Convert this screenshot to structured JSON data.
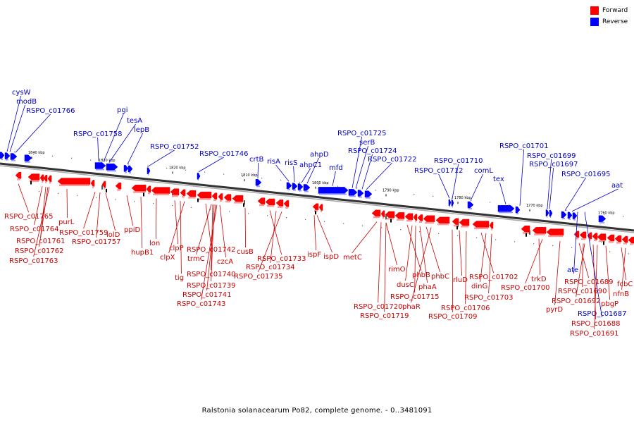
{
  "caption": "Ralstonia solanacearum Po82, complete genome. - 0..3481091",
  "legend": [
    {
      "label": "Forward",
      "color": "#ff0000"
    },
    {
      "label": "Reverse",
      "color": "#0000ff"
    }
  ],
  "colors": {
    "forward": "#ff0000",
    "reverse": "#0000ff",
    "label_forward": "#cc0000",
    "label_reverse": "#0000cc",
    "axis": "#555555"
  },
  "ticks": [
    "1840 kbp",
    "1830 kbp",
    "1820 kbp",
    "1810 kbp",
    "1800 kbp",
    "1790 kbp",
    "1780 kbp",
    "1770 kbp",
    "1760 kbp"
  ],
  "reverse_labels": [
    "cysW",
    "modB",
    "RSPO_c01766",
    "pgi",
    "RSPO_c01758",
    "tesA",
    "lepB",
    "RSPO_c01752",
    "RSPO_c01746",
    "crtB",
    "risA",
    "risS",
    "ahpC1",
    "ahpD",
    "mfd",
    "RSPO_c01725",
    "serB",
    "RSPO_c01724",
    "RSPO_c01722",
    "RSPO_c01712",
    "RSPO_c01710",
    "comL",
    "tex",
    "RSPO_c01701",
    "RSPO_c01699",
    "RSPO_c01697",
    "RSPO_c01695",
    "aat",
    "ate",
    "RSPO_c01687"
  ],
  "forward_labels": [
    "RSPO_c01765",
    "purL",
    "RSPO_c01764",
    "RSPO_c01761",
    "RSPO_c01762",
    "RSPO_c01763",
    "RSPO_c01759",
    "lolD",
    "RSPO_c01757",
    "ppiD",
    "hupB1",
    "lon",
    "clpP",
    "clpX",
    "tig",
    "RSPO_c01742",
    "trmC",
    "czcA",
    "RSPO_c01740",
    "RSPO_c01739",
    "RSPO_c01741",
    "RSPO_c01743",
    "cusB",
    "RSPO_c01733",
    "RSPO_c01734",
    "RSPO_c01735",
    "ispF",
    "ispD",
    "metC",
    "rimO",
    "phbB",
    "dusC",
    "phbC",
    "phaA",
    "RSPO_c01715",
    "phaR",
    "RSPO_c01720",
    "RSPO_c01719",
    "rluD",
    "RSPO_c01702",
    "dinG",
    "RSPO_c01703",
    "RSPO_c01706",
    "RSPO_c01709",
    "trkD",
    "RSPO_c01700",
    "pyrD",
    "RSPO_c01689",
    "RSPO_c01690",
    "RSPO_c01692",
    "RSPO_c01688",
    "RSPO_c01691",
    "fcbC",
    "nfnB",
    "pbgP"
  ]
}
